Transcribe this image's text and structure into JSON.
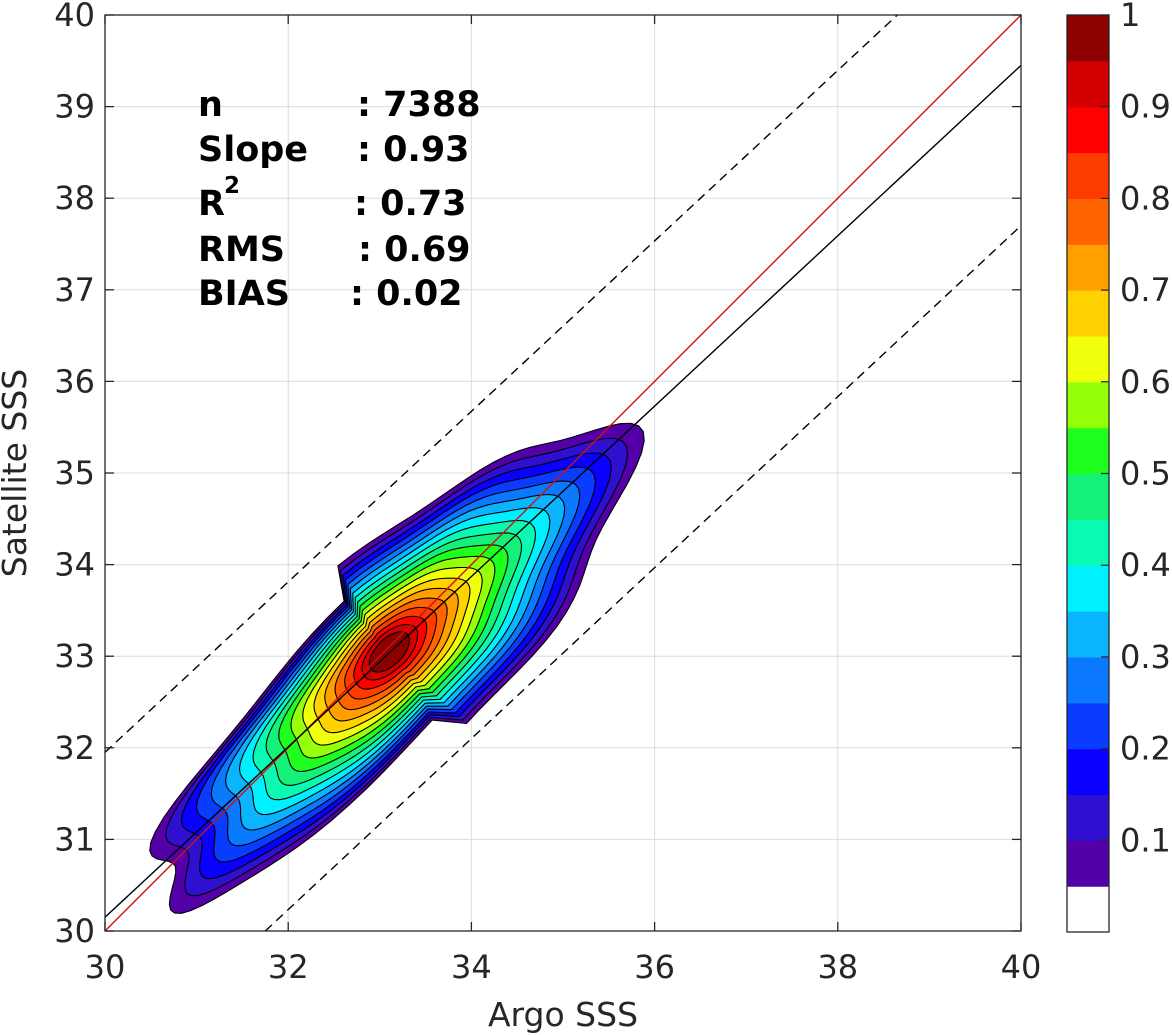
{
  "chart_data": {
    "type": "contour",
    "xlabel": "Argo SSS",
    "ylabel": "Satellite SSS",
    "xlim": [
      30,
      40
    ],
    "ylim": [
      30,
      40
    ],
    "xticks": [
      "30",
      "32",
      "34",
      "36",
      "38",
      "40"
    ],
    "yticks": [
      "30",
      "31",
      "32",
      "33",
      "34",
      "35",
      "36",
      "37",
      "38",
      "39",
      "40"
    ],
    "grid": true,
    "stats": {
      "n": {
        "label": "n",
        "value": ": 7388"
      },
      "slope": {
        "label": "Slope",
        "value": ": 0.93"
      },
      "r2": {
        "label": "R",
        "sup": "2",
        "value": ": 0.73"
      },
      "rms": {
        "label": "RMS",
        "value": ": 0.69"
      },
      "bias": {
        "label": "BIAS",
        "value": ": 0.02"
      }
    },
    "lines": [
      {
        "role": "one-to-one",
        "color": "#d01010",
        "style": "solid",
        "points": [
          [
            30,
            30
          ],
          [
            40,
            40
          ]
        ]
      },
      {
        "role": "regression fit",
        "color": "#000000",
        "style": "solid",
        "points": [
          [
            30,
            30.15
          ],
          [
            40,
            39.45
          ]
        ]
      },
      {
        "role": "upper bound",
        "color": "#000000",
        "style": "dashed",
        "points": [
          [
            30,
            31.95
          ],
          [
            38.65,
            40
          ]
        ]
      },
      {
        "role": "lower bound",
        "color": "#000000",
        "style": "dashed",
        "points": [
          [
            31.75,
            30
          ],
          [
            40,
            37.7
          ]
        ]
      }
    ],
    "density_peak": {
      "x": 33.1,
      "y": 33.05,
      "value": 1
    },
    "contour_levels": [
      0.05,
      0.1,
      0.15,
      0.2,
      0.25,
      0.3,
      0.35,
      0.4,
      0.45,
      0.5,
      0.55,
      0.6,
      0.65,
      0.7,
      0.75,
      0.8,
      0.85,
      0.9,
      0.95
    ],
    "colorbar": {
      "ticks": [
        "0.1",
        "0.2",
        "0.3",
        "0.4",
        "0.5",
        "0.6",
        "0.7",
        "0.8",
        "0.9",
        "1"
      ],
      "tick_values": [
        0.1,
        0.2,
        0.3,
        0.4,
        0.5,
        0.6,
        0.7,
        0.8,
        0.9,
        1.0
      ],
      "colors": [
        "#ffffff",
        "#5400a8",
        "#2f0fd0",
        "#0a00ff",
        "#0a3cff",
        "#0a78ff",
        "#0ab4ff",
        "#00f0ff",
        "#0afab4",
        "#14f078",
        "#1eff1e",
        "#96ff0a",
        "#f0ff0a",
        "#ffd200",
        "#ffa000",
        "#ff6400",
        "#ff3c00",
        "#ff0000",
        "#d20000",
        "#8c0000"
      ]
    }
  }
}
